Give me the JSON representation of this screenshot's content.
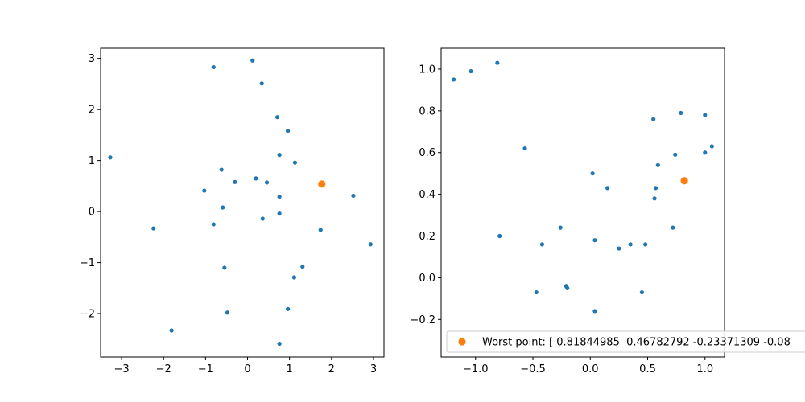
{
  "chart_data": [
    {
      "type": "scatter",
      "xlim": [
        -3.5,
        3.25
      ],
      "ylim": [
        -2.85,
        3.2
      ],
      "xticks": [
        -3,
        -2,
        -1,
        0,
        1,
        2,
        3
      ],
      "yticks": [
        -2,
        -1,
        0,
        1,
        2,
        3
      ],
      "xtick_labels": [
        "−3",
        "−2",
        "−1",
        "0",
        "1",
        "2",
        "3"
      ],
      "ytick_labels": [
        "−2",
        "−1",
        "0",
        "1",
        "2",
        "3"
      ],
      "grid": false,
      "series": [
        {
          "color": "#1f77b4",
          "marker": "small-dot",
          "points": [
            [
              -3.27,
              1.06
            ],
            [
              -2.24,
              -0.33
            ],
            [
              -1.81,
              -2.33
            ],
            [
              -1.03,
              0.41
            ],
            [
              -0.81,
              2.83
            ],
            [
              -0.81,
              -0.25
            ],
            [
              -0.62,
              0.82
            ],
            [
              -0.59,
              0.08
            ],
            [
              -0.55,
              -1.1
            ],
            [
              -0.48,
              -1.98
            ],
            [
              -0.3,
              0.58
            ],
            [
              0.12,
              2.96
            ],
            [
              0.2,
              0.65
            ],
            [
              0.34,
              2.51
            ],
            [
              0.36,
              -0.14
            ],
            [
              0.46,
              0.57
            ],
            [
              0.71,
              1.85
            ],
            [
              0.76,
              1.11
            ],
            [
              0.76,
              0.29
            ],
            [
              0.76,
              -0.04
            ],
            [
              0.76,
              -2.59
            ],
            [
              0.96,
              1.58
            ],
            [
              0.96,
              -1.91
            ],
            [
              1.11,
              -1.29
            ],
            [
              1.13,
              0.96
            ],
            [
              1.31,
              -1.08
            ],
            [
              1.74,
              -0.36
            ],
            [
              2.52,
              0.31
            ],
            [
              2.93,
              -0.64
            ]
          ]
        },
        {
          "color": "#ff7f0e",
          "marker": "large-dot",
          "points": [
            [
              1.77,
              0.54
            ]
          ]
        }
      ]
    },
    {
      "type": "scatter",
      "xlim": [
        -1.3,
        1.17
      ],
      "ylim": [
        -0.38,
        1.1
      ],
      "xticks": [
        -1.0,
        -0.5,
        0.0,
        0.5,
        1.0
      ],
      "yticks": [
        -0.2,
        0.0,
        0.2,
        0.4,
        0.6,
        0.8,
        1.0
      ],
      "xtick_labels": [
        "−1.0",
        "−0.5",
        "0.0",
        "0.5",
        "1.0"
      ],
      "ytick_labels": [
        "−0.2",
        "0.0",
        "0.2",
        "0.4",
        "0.6",
        "0.8",
        "1.0"
      ],
      "grid": false,
      "legend_position": "lower-right",
      "series": [
        {
          "color": "#1f77b4",
          "marker": "small-dot",
          "points": [
            [
              -1.19,
              0.95
            ],
            [
              -1.04,
              0.99
            ],
            [
              -0.81,
              1.03
            ],
            [
              -0.79,
              0.2
            ],
            [
              -0.57,
              0.62
            ],
            [
              -0.47,
              -0.07
            ],
            [
              -0.42,
              0.16
            ],
            [
              -0.26,
              0.24
            ],
            [
              -0.21,
              -0.04
            ],
            [
              -0.2,
              -0.05
            ],
            [
              0.02,
              0.5
            ],
            [
              0.04,
              0.18
            ],
            [
              0.04,
              -0.16
            ],
            [
              0.15,
              0.43
            ],
            [
              0.25,
              0.14
            ],
            [
              0.35,
              0.16
            ],
            [
              0.45,
              -0.07
            ],
            [
              0.48,
              0.16
            ],
            [
              0.55,
              0.76
            ],
            [
              0.56,
              0.38
            ],
            [
              0.57,
              0.43
            ],
            [
              0.59,
              0.54
            ],
            [
              0.72,
              0.24
            ],
            [
              0.74,
              0.59
            ],
            [
              0.79,
              0.79
            ],
            [
              1.0,
              0.78
            ],
            [
              1.0,
              0.6
            ],
            [
              1.06,
              0.63
            ]
          ]
        },
        {
          "name": "Worst point: [ 0.81844985  0.46782792 -0.23371309 -0.08",
          "color": "#ff7f0e",
          "marker": "large-dot",
          "points": [
            [
              0.82,
              0.465
            ]
          ]
        }
      ]
    }
  ]
}
